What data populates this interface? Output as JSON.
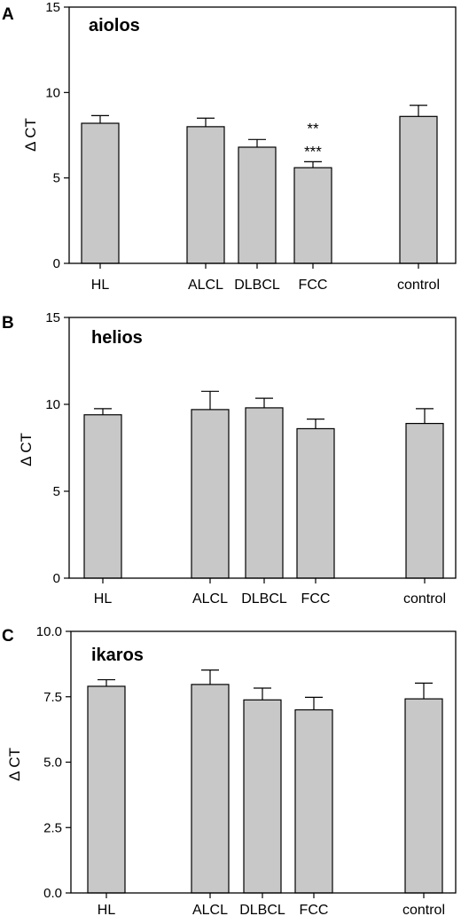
{
  "figure": {
    "colors": {
      "bar_fill": "#c8c8c8",
      "stroke": "#000000",
      "background": "#ffffff"
    }
  },
  "chart_data": [
    {
      "type": "bar",
      "panel_letter": "A",
      "title": "aiolos",
      "ylabel": "Δ CT",
      "xlabel": "",
      "ylim": [
        0,
        15
      ],
      "yticks": [
        "0",
        "5",
        "10",
        "15"
      ],
      "ytick_values": [
        0,
        5,
        10,
        15
      ],
      "categories": [
        "HL",
        "ALCL",
        "DLBCL",
        "FCC",
        "control"
      ],
      "values": [
        8.2,
        8.0,
        6.8,
        5.6,
        8.6
      ],
      "error": [
        0.45,
        0.5,
        0.45,
        0.35,
        0.65
      ],
      "annotations": [
        {
          "category": "FCC",
          "lines": [
            "**",
            "***"
          ]
        }
      ],
      "grid": false
    },
    {
      "type": "bar",
      "panel_letter": "B",
      "title": "helios",
      "ylabel": "Δ CT",
      "xlabel": "",
      "ylim": [
        0,
        15
      ],
      "yticks": [
        "0",
        "5",
        "10",
        "15"
      ],
      "ytick_values": [
        0,
        5,
        10,
        15
      ],
      "categories": [
        "HL",
        "ALCL",
        "DLBCL",
        "FCC",
        "control"
      ],
      "values": [
        9.4,
        9.7,
        9.8,
        8.6,
        8.9
      ],
      "error": [
        0.35,
        1.05,
        0.55,
        0.55,
        0.85
      ],
      "annotations": [],
      "grid": false
    },
    {
      "type": "bar",
      "panel_letter": "C",
      "title": "ikaros",
      "ylabel": "Δ CT",
      "xlabel": "",
      "ylim": [
        0,
        10
      ],
      "yticks": [
        "0.0",
        "2.5",
        "5.0",
        "7.5",
        "10.0"
      ],
      "ytick_values": [
        0,
        2.5,
        5,
        7.5,
        10
      ],
      "categories": [
        "HL",
        "ALCL",
        "DLBCL",
        "FCC",
        "control"
      ],
      "values": [
        7.9,
        7.97,
        7.38,
        7.0,
        7.42
      ],
      "error": [
        0.25,
        0.55,
        0.45,
        0.48,
        0.6
      ],
      "annotations": [],
      "grid": false
    }
  ]
}
